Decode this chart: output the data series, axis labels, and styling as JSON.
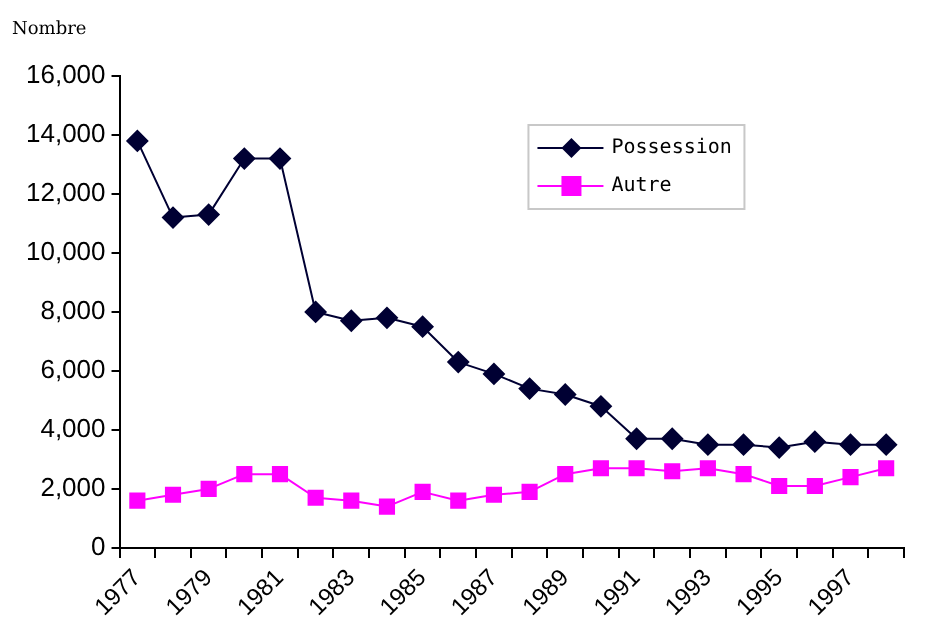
{
  "chart_data": {
    "type": "line",
    "ylabel": "Nombre",
    "categories": [
      "1977",
      null,
      "1979",
      null,
      "1981",
      null,
      "1983",
      null,
      "1985",
      null,
      "1987",
      null,
      "1989",
      null,
      "1991",
      null,
      "1993",
      null,
      "1995",
      null,
      "1997",
      null
    ],
    "series": [
      {
        "name": "Possession",
        "color": "#000033",
        "marker": "diamond",
        "values": [
          13800,
          11200,
          11300,
          13200,
          13200,
          8000,
          7700,
          7800,
          7500,
          6300,
          5900,
          5400,
          5200,
          4800,
          3700,
          3700,
          3500,
          3500,
          3400,
          3600,
          3500,
          3500
        ]
      },
      {
        "name": "Autre",
        "color": "#ff00ff",
        "marker": "square",
        "values": [
          1600,
          1800,
          2000,
          2500,
          2500,
          1700,
          1600,
          1400,
          1900,
          1600,
          1800,
          1900,
          2500,
          2700,
          2700,
          2600,
          2700,
          2500,
          2100,
          2100,
          2400,
          2700
        ]
      }
    ],
    "ylim": [
      0,
      16000
    ],
    "yticks": [
      0,
      {
        "value": 2000,
        "label": "2,000"
      },
      {
        "value": 4000,
        "label": "4,000"
      },
      {
        "value": 6000,
        "label": "6,000"
      },
      {
        "value": 8000,
        "label": "8,000"
      },
      {
        "value": 10000,
        "label": "10,000"
      },
      {
        "value": 12000,
        "label": "12,000"
      },
      {
        "value": 14000,
        "label": "14,000"
      },
      {
        "value": 16000,
        "label": "16,000"
      }
    ],
    "grid": false,
    "legend": "top right"
  }
}
